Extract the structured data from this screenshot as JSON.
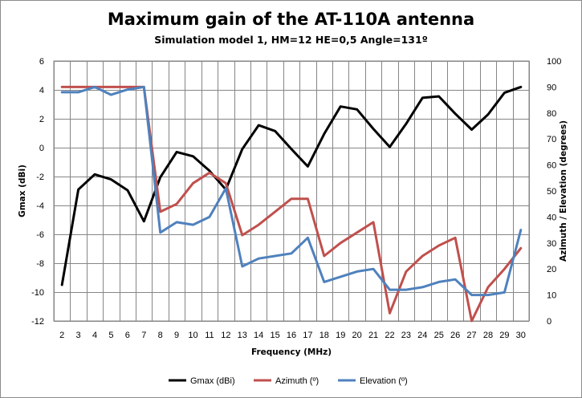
{
  "chart_data": {
    "type": "line",
    "title": "Maximum gain of the AT-110A antenna",
    "subtitle": "Simulation model 1, HM=12 HE=0,5 Angle=131º",
    "xlabel": "Frequency (MHz)",
    "ylabel": "Gmax (dBi)",
    "y2label": "Azimuth / Elevation (degrees)",
    "x": [
      2,
      3,
      4,
      5,
      6,
      7,
      8,
      9,
      10,
      11,
      12,
      13,
      14,
      15,
      16,
      17,
      18,
      19,
      20,
      21,
      22,
      23,
      24,
      25,
      26,
      27,
      28,
      29,
      30
    ],
    "ylim": [
      -12,
      6
    ],
    "yticks": [
      -12,
      -10,
      -8,
      -6,
      -4,
      -2,
      0,
      2,
      4,
      6
    ],
    "y2lim": [
      0,
      100
    ],
    "y2ticks": [
      0,
      10,
      20,
      30,
      40,
      50,
      60,
      70,
      80,
      90,
      100
    ],
    "grid": true,
    "legend_position": "bottom",
    "series": [
      {
        "name": "Gmax (dBi)",
        "axis": "left",
        "color": "#000000",
        "values": [
          -9.5,
          -2.9,
          -1.85,
          -2.2,
          -2.95,
          -5.1,
          -2.05,
          -0.3,
          -0.6,
          -1.6,
          -2.9,
          -0.1,
          1.55,
          1.15,
          -0.1,
          -1.3,
          0.95,
          2.85,
          2.65,
          1.3,
          0.05,
          1.65,
          3.45,
          3.55,
          2.35,
          1.25,
          2.3,
          3.8,
          4.2
        ]
      },
      {
        "name": "Azimuth (º)",
        "axis": "right",
        "color": "#c0504d",
        "values": [
          90,
          90,
          90,
          90,
          90,
          90,
          42,
          45,
          53,
          57,
          53,
          33,
          37,
          42,
          47,
          47,
          25,
          30,
          34,
          38,
          3,
          19,
          25,
          29,
          32,
          0,
          13,
          20,
          28
        ]
      },
      {
        "name": "Elevation (º)",
        "axis": "right",
        "color": "#4f81bd",
        "values": [
          88,
          88,
          90,
          87,
          89,
          90,
          34,
          38,
          37,
          40,
          51,
          21,
          24,
          25,
          26,
          32,
          15,
          17,
          19,
          20,
          12,
          12,
          13,
          15,
          16,
          10,
          10,
          11,
          35
        ]
      }
    ]
  }
}
